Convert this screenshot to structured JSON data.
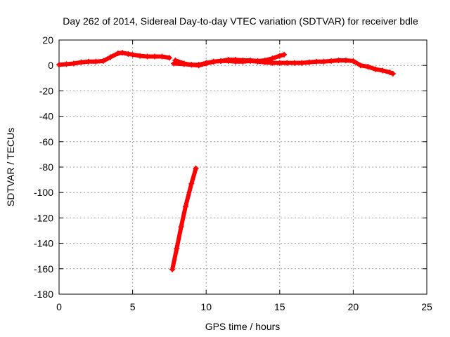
{
  "chart_data": {
    "type": "scatter",
    "title": "Day 262 of 2014, Sidereal Day-to-day VTEC variation (SDTVAR) for receiver bdle",
    "xlabel": "GPS time / hours",
    "ylabel": "SDTVAR / TECUs",
    "xlim": [
      0,
      25
    ],
    "ylim": [
      -180,
      20
    ],
    "xticks": [
      "0",
      "5",
      "10",
      "15",
      "20",
      "25"
    ],
    "yticks": [
      "20",
      "0",
      "-20",
      "-40",
      "-60",
      "-80",
      "-100",
      "-120",
      "-140",
      "-160",
      "-180"
    ],
    "grid": true,
    "marker_color": "#ff0000",
    "series": [
      {
        "x": [
          0.0,
          0.5,
          1.0,
          1.5,
          2.0,
          2.5,
          3.0,
          3.5,
          4.0,
          4.3,
          4.7,
          5.0,
          5.5,
          6.0,
          6.5,
          7.0,
          7.5
        ],
        "y": [
          0.5,
          1.0,
          1.5,
          2.5,
          3.0,
          3.0,
          3.5,
          6.5,
          9.5,
          10.0,
          9.0,
          8.5,
          7.5,
          7.0,
          7.0,
          7.0,
          6.0
        ]
      },
      {
        "x": [
          7.9,
          8.5,
          9.0,
          9.5,
          10.0,
          10.5,
          11.0,
          11.5,
          12.0,
          12.5,
          13.0,
          13.5,
          14.0,
          14.5,
          15.0,
          15.3
        ],
        "y": [
          4.0,
          1.5,
          0.5,
          0.0,
          1.5,
          3.0,
          3.5,
          4.5,
          4.5,
          4.0,
          4.0,
          3.5,
          4.0,
          5.5,
          7.5,
          8.5
        ]
      },
      {
        "x": [
          7.8,
          8.5,
          9.0,
          9.5,
          10.0,
          10.5,
          11.0,
          11.5,
          12.0,
          12.5,
          13.0,
          13.5,
          14.0,
          14.5,
          15.0,
          15.5,
          16.0,
          16.5,
          17.0,
          17.5,
          18.0,
          18.5,
          19.0,
          19.5,
          20.0,
          20.5,
          21.0,
          21.5,
          22.0,
          22.5,
          22.7
        ],
        "y": [
          1.5,
          1.0,
          0.5,
          0.5,
          2.0,
          3.0,
          3.5,
          3.5,
          3.0,
          3.0,
          3.5,
          3.0,
          2.5,
          2.0,
          2.0,
          2.0,
          2.0,
          2.0,
          2.5,
          3.0,
          3.0,
          3.5,
          4.0,
          4.0,
          3.5,
          0.0,
          -1.0,
          -3.0,
          -4.0,
          -5.5,
          -6.5
        ]
      },
      {
        "x": [
          7.7,
          8.0,
          8.3,
          8.6,
          9.0,
          9.3
        ],
        "y": [
          -160.5,
          -144.0,
          -127.0,
          -111.0,
          -93.0,
          -81.0
        ]
      }
    ]
  }
}
